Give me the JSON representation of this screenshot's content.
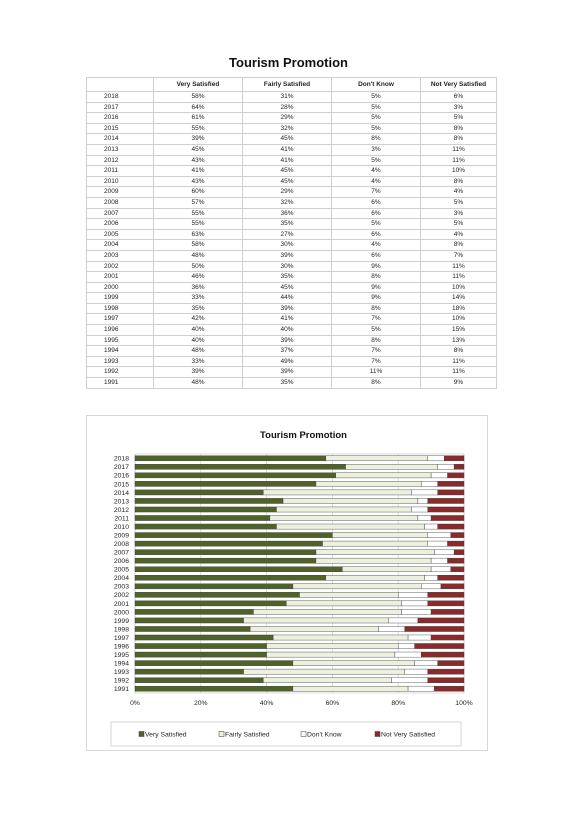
{
  "title": "Tourism Promotion",
  "table": {
    "headers": [
      "",
      "Very Satisfied",
      "Fairly Satisfied",
      "Don't Know",
      "Not Very Satisfied"
    ],
    "rows": [
      [
        "2018",
        "58%",
        "31%",
        "5%",
        "6%"
      ],
      [
        "2017",
        "64%",
        "28%",
        "5%",
        "3%"
      ],
      [
        "2016",
        "61%",
        "29%",
        "5%",
        "5%"
      ],
      [
        "2015",
        "55%",
        "32%",
        "5%",
        "8%"
      ],
      [
        "2014",
        "39%",
        "45%",
        "8%",
        "8%"
      ],
      [
        "2013",
        "45%",
        "41%",
        "3%",
        "11%"
      ],
      [
        "2012",
        "43%",
        "41%",
        "5%",
        "11%"
      ],
      [
        "2011",
        "41%",
        "45%",
        "4%",
        "10%"
      ],
      [
        "2010",
        "43%",
        "45%",
        "4%",
        "8%"
      ],
      [
        "2009",
        "60%",
        "29%",
        "7%",
        "4%"
      ],
      [
        "2008",
        "57%",
        "32%",
        "6%",
        "5%"
      ],
      [
        "2007",
        "55%",
        "36%",
        "6%",
        "3%"
      ],
      [
        "2006",
        "55%",
        "35%",
        "5%",
        "5%"
      ],
      [
        "2005",
        "63%",
        "27%",
        "6%",
        "4%"
      ],
      [
        "2004",
        "58%",
        "30%",
        "4%",
        "8%"
      ],
      [
        "2003",
        "48%",
        "39%",
        "6%",
        "7%"
      ],
      [
        "2002",
        "50%",
        "30%",
        "9%",
        "11%"
      ],
      [
        "2001",
        "46%",
        "35%",
        "8%",
        "11%"
      ],
      [
        "2000",
        "36%",
        "45%",
        "9%",
        "10%"
      ],
      [
        "1999",
        "33%",
        "44%",
        "9%",
        "14%"
      ],
      [
        "1998",
        "35%",
        "39%",
        "8%",
        "18%"
      ],
      [
        "1997",
        "42%",
        "41%",
        "7%",
        "10%"
      ],
      [
        "1996",
        "40%",
        "40%",
        "5%",
        "15%"
      ],
      [
        "1995",
        "40%",
        "39%",
        "8%",
        "13%"
      ],
      [
        "1994",
        "48%",
        "37%",
        "7%",
        "8%"
      ],
      [
        "1993",
        "33%",
        "49%",
        "7%",
        "11%"
      ],
      [
        "1992",
        "39%",
        "39%",
        "11%",
        "11%"
      ],
      [
        "1991",
        "48%",
        "35%",
        "8%",
        "9%"
      ]
    ]
  },
  "chart_data": {
    "type": "bar",
    "stacked": true,
    "orientation": "horizontal",
    "title": "Tourism Promotion",
    "xlabel": "",
    "ylabel": "",
    "xlim": [
      0,
      100
    ],
    "xticks": [
      "0%",
      "20%",
      "40%",
      "60%",
      "80%",
      "100%"
    ],
    "legend_position": "bottom",
    "grid": true,
    "categories": [
      "2018",
      "2017",
      "2016",
      "2015",
      "2014",
      "2013",
      "2012",
      "2011",
      "2010",
      "2009",
      "2008",
      "2007",
      "2006",
      "2005",
      "2004",
      "2003",
      "2002",
      "2001",
      "2000",
      "1999",
      "1998",
      "1997",
      "1996",
      "1995",
      "1994",
      "1993",
      "1992",
      "1991"
    ],
    "series": [
      {
        "name": "Very Satisfied",
        "color": "#4f6228",
        "values": [
          58,
          64,
          61,
          55,
          39,
          45,
          43,
          41,
          43,
          60,
          57,
          55,
          55,
          63,
          58,
          48,
          50,
          46,
          36,
          33,
          35,
          42,
          40,
          40,
          48,
          33,
          39,
          48
        ]
      },
      {
        "name": "Fairly Satisfied",
        "color": "#ebf1de",
        "values": [
          31,
          28,
          29,
          32,
          45,
          41,
          41,
          45,
          45,
          29,
          32,
          36,
          35,
          27,
          30,
          39,
          30,
          35,
          45,
          44,
          39,
          41,
          40,
          39,
          37,
          49,
          39,
          35
        ]
      },
      {
        "name": "Don't Know",
        "color": "#ffffff",
        "values": [
          5,
          5,
          5,
          5,
          8,
          3,
          5,
          4,
          4,
          7,
          6,
          6,
          5,
          6,
          4,
          6,
          9,
          8,
          9,
          9,
          8,
          7,
          5,
          8,
          7,
          7,
          11,
          8
        ]
      },
      {
        "name": "Not Very Satisfied",
        "color": "#8b2a2a",
        "values": [
          6,
          3,
          5,
          8,
          8,
          11,
          11,
          10,
          8,
          4,
          5,
          3,
          5,
          4,
          8,
          7,
          11,
          11,
          10,
          14,
          18,
          10,
          15,
          13,
          8,
          11,
          11,
          9
        ]
      }
    ]
  }
}
